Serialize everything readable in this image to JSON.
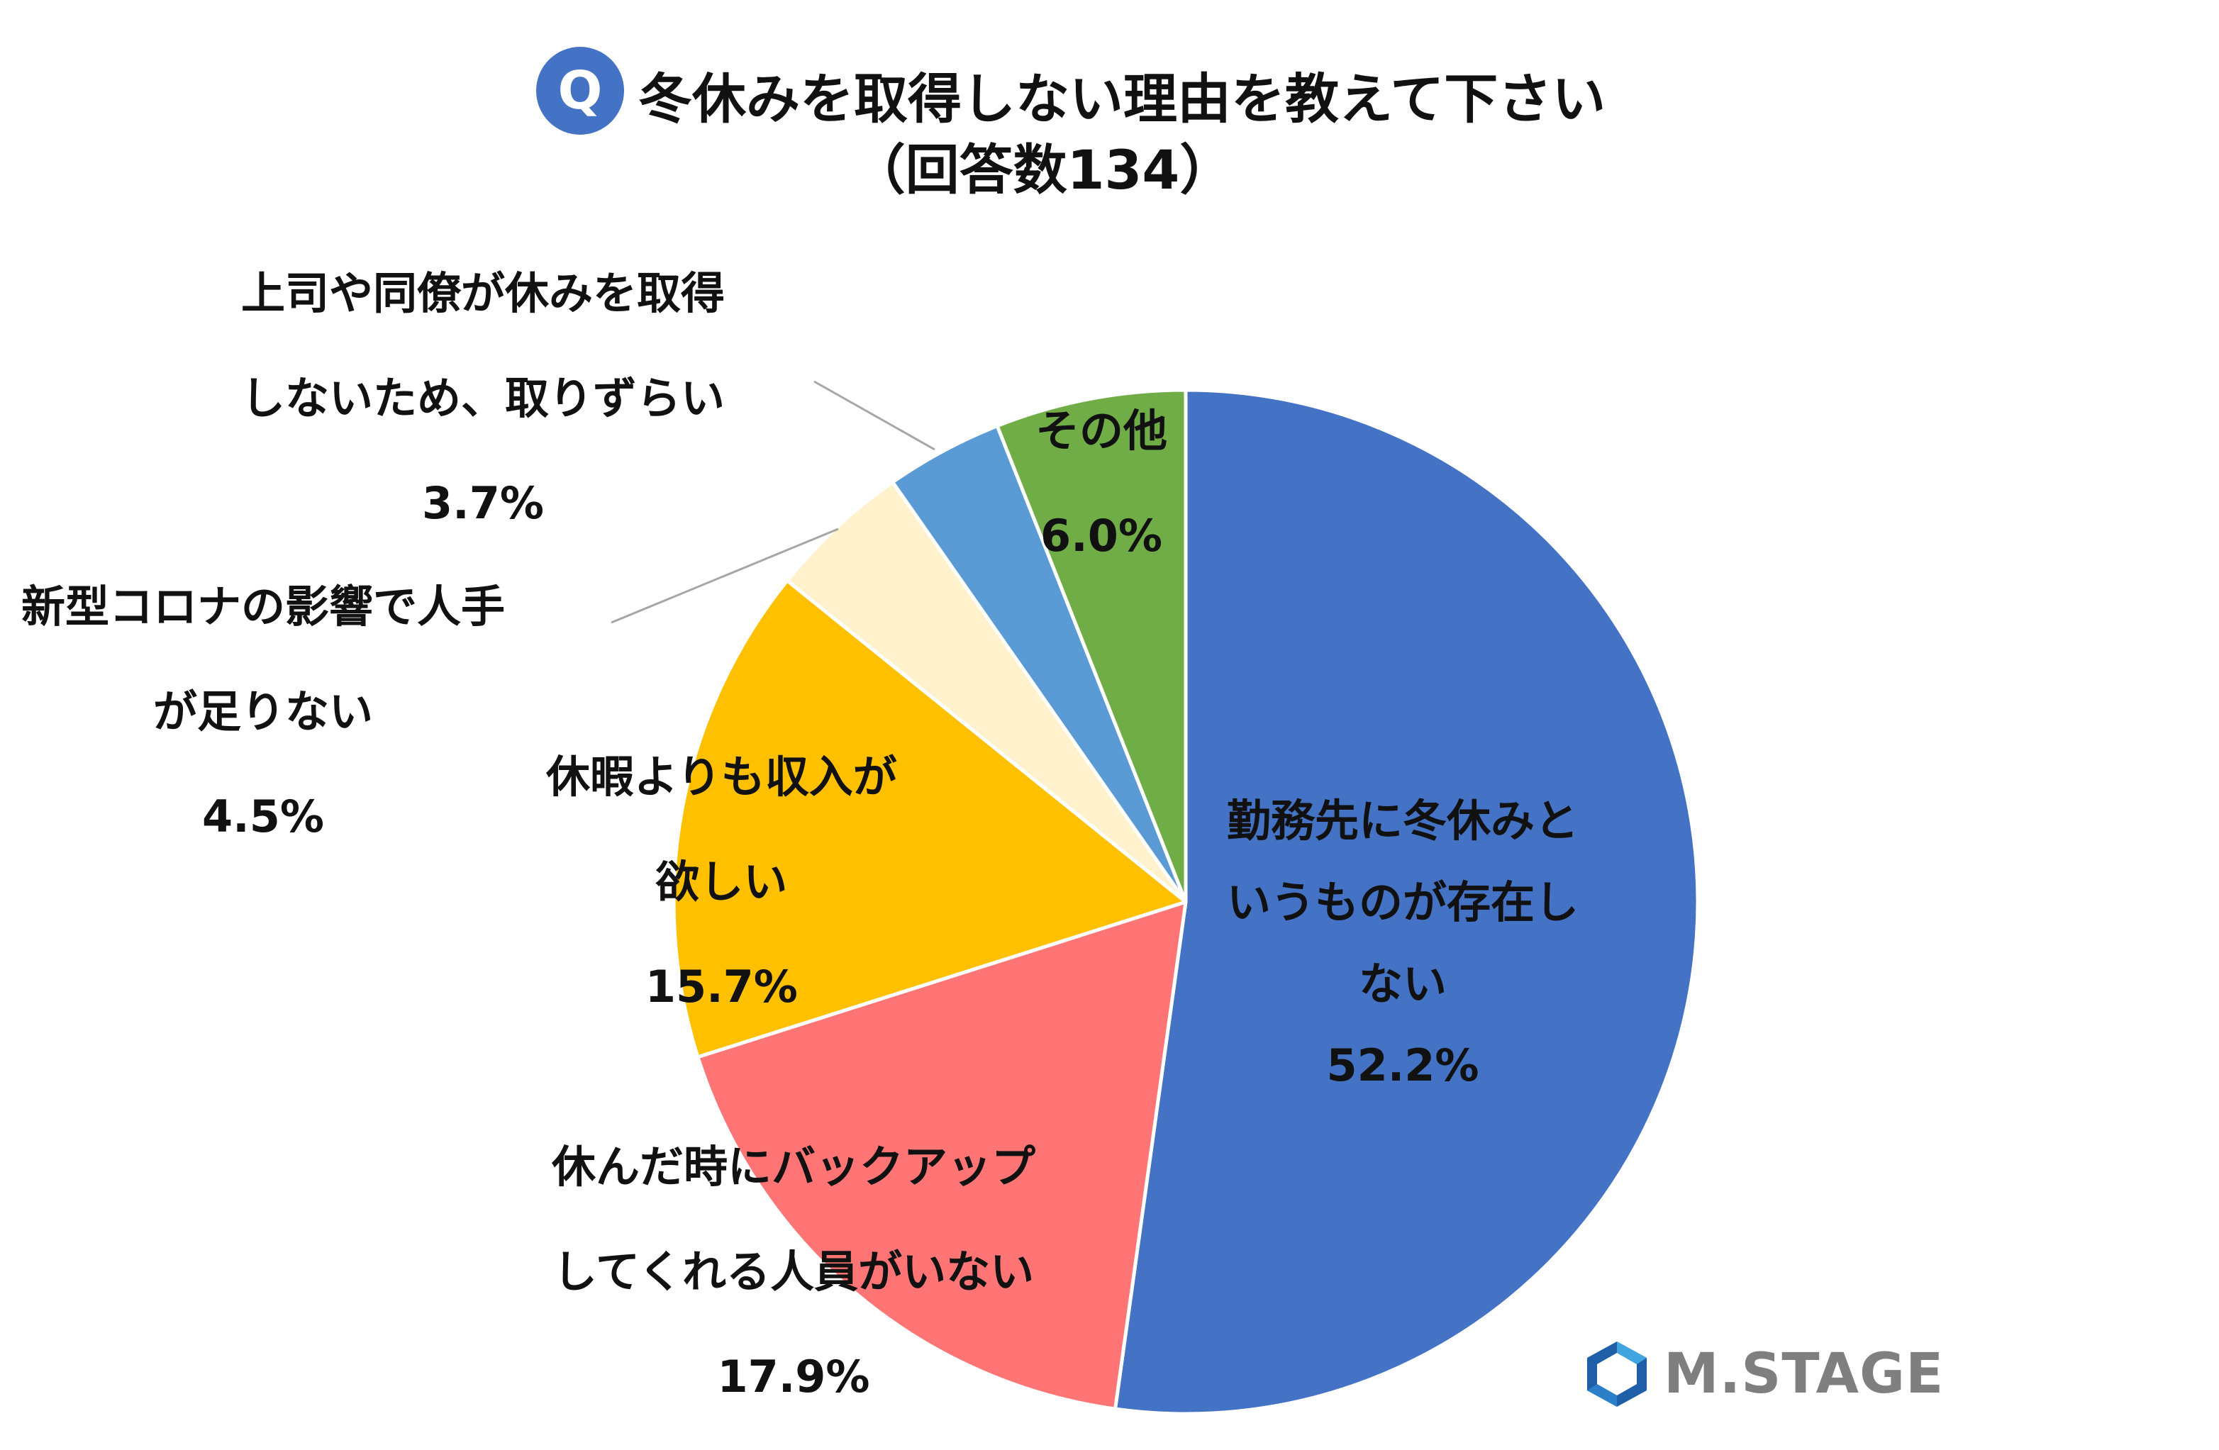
{
  "colors": {
    "accent": "#4472C4",
    "slice_colors": [
      "#4472C4",
      "#FF7575",
      "#FFC000",
      "#FFF2CC",
      "#5B9BD5",
      "#70AD47"
    ],
    "logo": "#7f7f7f"
  },
  "header": {
    "badge": "Q",
    "title": "冬休みを取得しない理由を教えて下さい",
    "subtitle": "（回答数134）"
  },
  "chart_data": {
    "type": "pie",
    "title": "冬休みを取得しない理由を教えて下さい",
    "subtitle": "（回答数134）",
    "start": "12 o'clock, clockwise",
    "slices": [
      {
        "label_lines": [
          "勤務先に冬休みと",
          "いうものが存在し",
          "ない"
        ],
        "value": 52.2,
        "value_label": "52.2%"
      },
      {
        "label_lines": [
          "休んだ時にバックアップ",
          "してくれる人員がいない"
        ],
        "value": 17.9,
        "value_label": "17.9%"
      },
      {
        "label_lines": [
          "休暇よりも収入が",
          "欲しい"
        ],
        "value": 15.7,
        "value_label": "15.7%"
      },
      {
        "label_lines": [
          "新型コロナの影響で人手",
          "が足りない"
        ],
        "value": 4.5,
        "value_label": "4.5%"
      },
      {
        "label_lines": [
          "上司や同僚が休みを取得",
          "しないため、取りずらい"
        ],
        "value": 3.7,
        "value_label": "3.7%"
      },
      {
        "label_lines": [
          "その他"
        ],
        "value": 6.0,
        "value_label": "6.0%"
      }
    ]
  },
  "logo": {
    "icon": "hexagon-logo-icon",
    "text": "M.STAGE"
  }
}
